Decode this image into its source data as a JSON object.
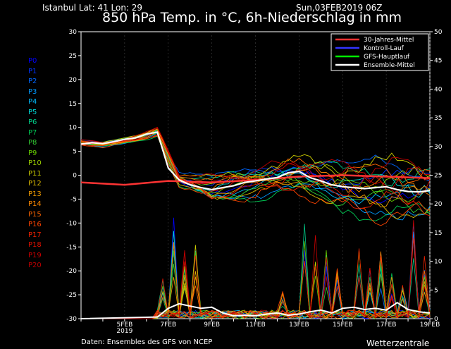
{
  "header": {
    "location": "Istanbul   Lat: 41 Lon: 29",
    "run": "Sun,03FEB2019 06Z",
    "title": "850 hPa Temp. in °C, 6h-Niederschlag in mm"
  },
  "footer": {
    "source": "Daten: Ensembles des GFS von NCEP",
    "brand": "Wetterzentrale"
  },
  "members": [
    {
      "label": "P0",
      "color": "#0000ff"
    },
    {
      "label": "P1",
      "color": "#0033ff"
    },
    {
      "label": "P2",
      "color": "#0066ff"
    },
    {
      "label": "P3",
      "color": "#0099ff"
    },
    {
      "label": "P4",
      "color": "#00bbff"
    },
    {
      "label": "P5",
      "color": "#00dddd"
    },
    {
      "label": "P6",
      "color": "#00cc88"
    },
    {
      "label": "P7",
      "color": "#00cc55"
    },
    {
      "label": "P8",
      "color": "#33cc33"
    },
    {
      "label": "P9",
      "color": "#66cc00"
    },
    {
      "label": "P10",
      "color": "#99cc00"
    },
    {
      "label": "P11",
      "color": "#cccc00"
    },
    {
      "label": "P12",
      "color": "#ddbb00"
    },
    {
      "label": "P13",
      "color": "#ee9900"
    },
    {
      "label": "P14",
      "color": "#ff8800"
    },
    {
      "label": "P15",
      "color": "#ff6600"
    },
    {
      "label": "P16",
      "color": "#ff4400"
    },
    {
      "label": "P17",
      "color": "#ee2200"
    },
    {
      "label": "P18",
      "color": "#dd1100"
    },
    {
      "label": "P19",
      "color": "#cc0000"
    },
    {
      "label": "P20",
      "color": "#bb0000"
    }
  ],
  "chart_data": {
    "type": "line",
    "title": "850 hPa Temp. in °C, 6h-Niederschlag in mm",
    "x_range_days": [
      0,
      16
    ],
    "y_left_range": [
      -30,
      30
    ],
    "y_left_ticks": [
      "30",
      "25",
      "20",
      "15",
      "10",
      "5",
      "0",
      "-5",
      "-10",
      "-15",
      "-20",
      "-25",
      "-30"
    ],
    "y_right_range": [
      0,
      50
    ],
    "y_right_ticks": [
      "50",
      "45",
      "40",
      "35",
      "30",
      "25",
      "20",
      "15",
      "10",
      "5",
      "0"
    ],
    "x_ticks": [
      {
        "day": 2,
        "label": "5FEB",
        "sub": "2019"
      },
      {
        "day": 4,
        "label": "7FEB",
        "sub": ""
      },
      {
        "day": 6,
        "label": "9FEB",
        "sub": ""
      },
      {
        "day": 8,
        "label": "11FEB",
        "sub": ""
      },
      {
        "day": 10,
        "label": "13FEB",
        "sub": ""
      },
      {
        "day": 12,
        "label": "15FEB",
        "sub": ""
      },
      {
        "day": 14,
        "label": "17FEB",
        "sub": ""
      },
      {
        "day": 16,
        "label": "19FEB",
        "sub": ""
      }
    ],
    "legend": [
      {
        "name": "30-Jahres-Mittel",
        "color": "#ff3333"
      },
      {
        "name": "Kontroll-Lauf",
        "color": "#3333ff"
      },
      {
        "name": "GFS-Hauptlauf",
        "color": "#00ee00"
      },
      {
        "name": "Ensemble-Mittel",
        "color": "#ffffff"
      }
    ],
    "legend_position": "top-right",
    "climate_mean": {
      "name": "30-Jahres-Mittel",
      "x": [
        0,
        2,
        4,
        6,
        8,
        10,
        12,
        14,
        16
      ],
      "y": [
        -1.5,
        -2.0,
        -1.2,
        -1.5,
        -1.0,
        -0.3,
        0.0,
        -0.3,
        -0.6
      ]
    },
    "ensemble_mean": {
      "name": "Ensemble-Mittel",
      "x": [
        0,
        0.5,
        1,
        1.5,
        2,
        2.5,
        3,
        3.5,
        4,
        4.5,
        5,
        5.5,
        6,
        6.5,
        7,
        7.5,
        8,
        8.5,
        9,
        9.5,
        10,
        10.5,
        11,
        11.5,
        12,
        12.5,
        13,
        13.5,
        14,
        14.5,
        15,
        15.5,
        16
      ],
      "y": [
        6.5,
        6.8,
        6.6,
        7.0,
        7.5,
        7.8,
        8.6,
        9.0,
        1.5,
        -1.0,
        -2.0,
        -2.6,
        -3.0,
        -2.6,
        -2.2,
        -1.5,
        -1.2,
        -0.8,
        -0.5,
        0.5,
        0.8,
        -0.5,
        -1.2,
        -2.0,
        -2.4,
        -2.6,
        -2.8,
        -2.6,
        -2.4,
        -3.0,
        -3.4,
        -3.5,
        -3.2
      ]
    },
    "temp_member_anchors": {
      "x": [
        0,
        1,
        2,
        3,
        3.5,
        4.5,
        6,
        8,
        10,
        12,
        14,
        16
      ],
      "y": [
        6.8,
        6.4,
        7.2,
        8.2,
        9.2,
        -1.0,
        -3.0,
        -1.5,
        0.0,
        -2.5,
        -3.0,
        -3.5
      ]
    },
    "temp_member_spread_x": [
      0,
      1,
      2,
      3,
      3.5,
      4.5,
      6,
      8,
      10,
      12,
      14,
      16
    ],
    "temp_member_spread": [
      0.6,
      0.6,
      0.6,
      0.8,
      1.0,
      2.0,
      2.8,
      3.5,
      4.0,
      5.5,
      6.5,
      7.0
    ],
    "temp_member_count": 21,
    "precip_mean": {
      "name": "Ensemble-Mittel",
      "x": [
        3.5,
        4,
        4.5,
        5,
        5.5,
        6,
        6.5,
        7,
        7.5,
        8,
        8.5,
        9,
        9.5,
        10,
        10.5,
        11,
        11.5,
        12,
        12.5,
        13,
        13.5,
        14,
        14.5,
        15,
        15.5,
        16
      ],
      "y": [
        0.3,
        1.8,
        2.6,
        2.2,
        1.8,
        2.0,
        1.0,
        0.5,
        0.6,
        0.5,
        0.8,
        1.0,
        0.6,
        0.8,
        1.2,
        1.5,
        1.0,
        1.8,
        2.0,
        1.6,
        1.8,
        1.5,
        2.8,
        1.6,
        1.2,
        1.0
      ]
    },
    "precip_spike_days": [
      3.75,
      4.25,
      4.75,
      5.25,
      9.25,
      10.25,
      10.75,
      11.25,
      11.75,
      12.75,
      13.25,
      13.75,
      14.25,
      14.75,
      15.25,
      15.75
    ],
    "precip_spike_max": [
      7,
      18,
      12,
      13,
      5,
      19,
      16,
      12,
      9,
      14,
      10,
      13,
      8,
      6,
      18,
      11
    ]
  }
}
